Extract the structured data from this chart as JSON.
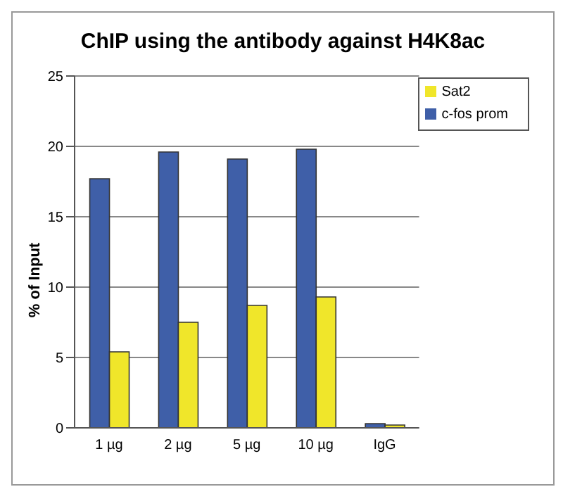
{
  "chart_data": {
    "type": "bar",
    "title": "ChIP using the antibody against H4K8ac",
    "ylabel": "% of Input",
    "categories": [
      "1 µg",
      "2 µg",
      "5 µg",
      "10 µg",
      "IgG"
    ],
    "series": [
      {
        "name": "c-fos prom",
        "color": "#3f5fa8",
        "values": [
          17.7,
          19.6,
          19.1,
          19.8,
          0.3
        ]
      },
      {
        "name": "Sat2",
        "color": "#f0e62a",
        "values": [
          5.4,
          7.5,
          8.7,
          9.3,
          0.2
        ]
      }
    ],
    "ylim": [
      0,
      25
    ],
    "yticks": [
      0,
      5,
      10,
      15,
      20,
      25
    ],
    "grid": "y",
    "legend": "top right"
  }
}
